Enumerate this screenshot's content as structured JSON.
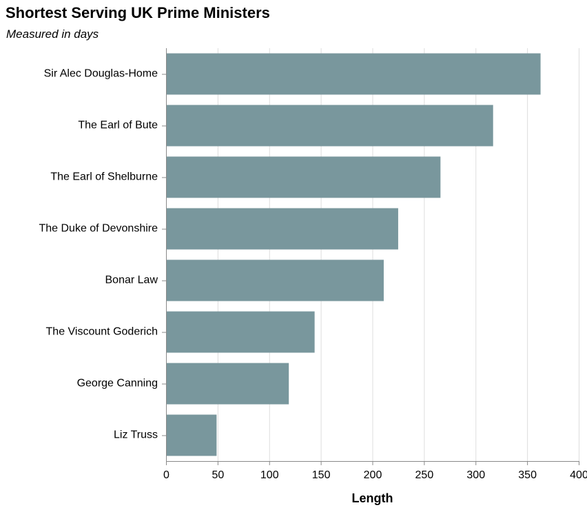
{
  "chart_data": {
    "type": "bar",
    "orientation": "horizontal",
    "title": "Shortest Serving UK Prime Ministers",
    "subtitle": "Measured in days",
    "xlabel": "Length",
    "ylabel": "",
    "xlim": [
      0,
      400
    ],
    "xticks": [
      0,
      50,
      100,
      150,
      200,
      250,
      300,
      350,
      400
    ],
    "grid": true,
    "bar_color": "#79979d",
    "categories": [
      "Sir Alec Douglas-Home",
      "The Earl of Bute",
      "The Earl of Shelburne",
      "The Duke of Devonshire",
      "Bonar Law",
      "The Viscount Goderich",
      "George Canning",
      "Liz Truss"
    ],
    "values": [
      363,
      317,
      266,
      225,
      211,
      144,
      119,
      49
    ]
  }
}
